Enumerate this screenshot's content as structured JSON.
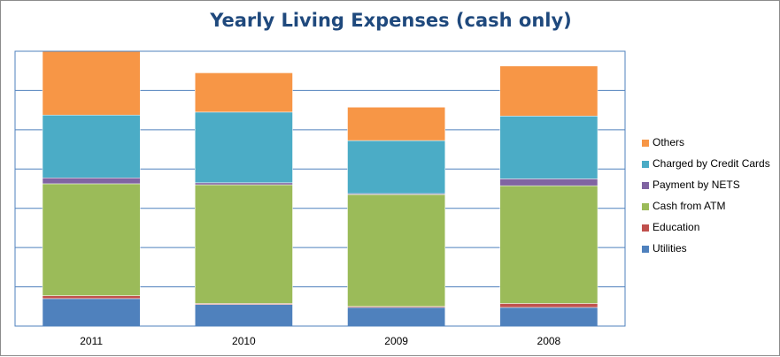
{
  "chart_data": {
    "type": "bar",
    "stacked": true,
    "title": "Yearly Living Expenses (cash only)",
    "xlabel": "",
    "ylabel": "",
    "categories": [
      "2011",
      "2010",
      "2009",
      "2008"
    ],
    "ylim": [
      0,
      140
    ],
    "grid": true,
    "legend_position": "right",
    "series": [
      {
        "name": "Utilities",
        "color": "#4f81bd",
        "values": [
          14,
          11,
          9.5,
          9.5
        ]
      },
      {
        "name": "Education",
        "color": "#c0504d",
        "values": [
          1.5,
          0.5,
          0.5,
          2
        ]
      },
      {
        "name": "Cash from ATM",
        "color": "#9bbb59",
        "values": [
          57,
          60.5,
          57,
          60
        ]
      },
      {
        "name": "Payment by NETS",
        "color": "#8064a2",
        "values": [
          3,
          1,
          0.5,
          3.5
        ]
      },
      {
        "name": "Charged by Credit Cards",
        "color": "#4bacc6",
        "values": [
          32,
          36,
          27,
          32
        ]
      },
      {
        "name": "Others",
        "color": "#f79646",
        "values": [
          32.5,
          20,
          17,
          25.5
        ]
      }
    ]
  }
}
